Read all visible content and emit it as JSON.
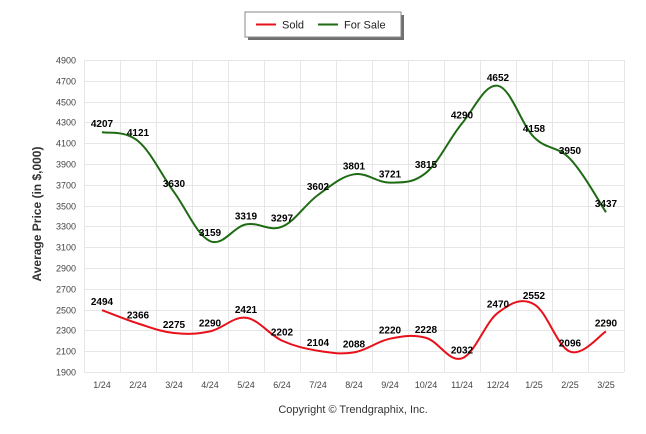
{
  "chart_data": {
    "type": "line",
    "categories": [
      "1/24",
      "2/24",
      "3/24",
      "4/24",
      "5/24",
      "6/24",
      "7/24",
      "8/24",
      "9/24",
      "10/24",
      "11/24",
      "12/24",
      "1/25",
      "2/25",
      "3/25"
    ],
    "series": [
      {
        "name": "Sold",
        "color": "#e8101a",
        "values": [
          2494,
          2366,
          2275,
          2290,
          2421,
          2202,
          2104,
          2088,
          2220,
          2228,
          2032,
          2470,
          2552,
          2096,
          2290
        ]
      },
      {
        "name": "For Sale",
        "color": "#1e6b14",
        "values": [
          4207,
          4121,
          3630,
          3159,
          3319,
          3297,
          3602,
          3801,
          3721,
          3815,
          4290,
          4652,
          4158,
          3950,
          3437
        ]
      }
    ],
    "ylabel": "Average Price (in $,000)",
    "ylim": [
      1900,
      4900
    ],
    "yticks": [
      1900,
      2100,
      2300,
      2500,
      2700,
      2900,
      3100,
      3300,
      3500,
      3700,
      3900,
      4100,
      4300,
      4500,
      4700,
      4900
    ],
    "grid": true,
    "legend_position": "top-center"
  },
  "footer": {
    "credit": "Copyright © Trendgraphix, Inc."
  }
}
